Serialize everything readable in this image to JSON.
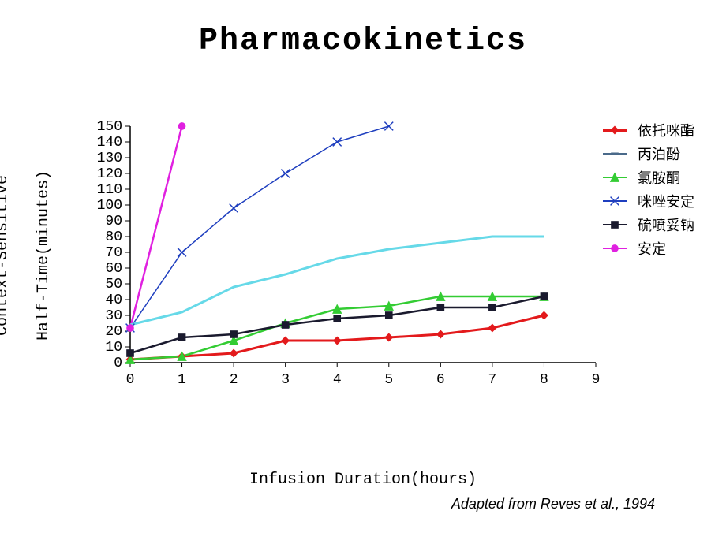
{
  "title": "Pharmacokinetics",
  "title_fontsize": 40,
  "attribution": "Adapted from Reves et al., 1994",
  "attribution_fontsize": 18,
  "chart": {
    "type": "line",
    "background_color": "#ffffff",
    "plot_border_color": "#000000",
    "axis_color": "#000000",
    "tick_fontsize": 18,
    "xlabel": "Infusion Duration(hours)",
    "ylabel_line1": "Context-Sensitive",
    "ylabel_line2": "Half-Time(minutes)",
    "label_fontsize": 20,
    "xlim": [
      0,
      9
    ],
    "ylim": [
      0,
      150
    ],
    "xticks": [
      0,
      1,
      2,
      3,
      4,
      5,
      6,
      7,
      8,
      9
    ],
    "yticks": [
      0,
      10,
      20,
      30,
      40,
      50,
      60,
      70,
      80,
      90,
      100,
      110,
      120,
      130,
      140,
      150
    ],
    "legend_fontsize": 18,
    "series": [
      {
        "name": "依托咪酯",
        "color": "#e31a1c",
        "line_width": 3,
        "marker": "diamond",
        "marker_size": 8,
        "x": [
          0,
          1,
          2,
          3,
          4,
          5,
          6,
          7,
          8
        ],
        "y": [
          2,
          4,
          6,
          14,
          14,
          16,
          18,
          22,
          30
        ]
      },
      {
        "name": "丙泊酚",
        "color": "#4a6a8a",
        "line_width": 1.5,
        "marker": "dash",
        "marker_size": 8,
        "x": [
          0,
          1,
          2,
          3,
          4,
          5,
          6,
          7,
          8
        ]
      },
      {
        "name": "氯胺酮",
        "color": "#33cc33",
        "line_width": 2.5,
        "marker": "triangle",
        "marker_size": 9,
        "x": [
          0,
          1,
          2,
          3,
          4,
          5,
          6,
          7,
          8
        ],
        "y": [
          2,
          4,
          14,
          25,
          34,
          36,
          42,
          42,
          42
        ]
      },
      {
        "name": "咪唑安定",
        "color": "#1f3fbf",
        "line_width": 1.5,
        "marker": "x",
        "marker_size": 9,
        "x": [
          0,
          1,
          2,
          3,
          4,
          5
        ],
        "y": [
          22,
          70,
          98,
          120,
          140,
          150
        ]
      },
      {
        "name": "硫喷妥钠",
        "color": "#1a1a2e",
        "line_width": 2.5,
        "marker": "square",
        "marker_size": 8,
        "x": [
          0,
          1,
          2,
          3,
          4,
          5,
          6,
          7,
          8
        ],
        "y": [
          6,
          16,
          18,
          24,
          28,
          30,
          35,
          35,
          42
        ]
      },
      {
        "name": "安定",
        "color": "#e020e0",
        "line_width": 2.5,
        "marker": "circle",
        "marker_size": 8,
        "x": [
          0,
          1
        ],
        "y": [
          22,
          150
        ]
      },
      {
        "name": "丙泊酚_line",
        "legend_hidden": true,
        "color": "#66d9e8",
        "line_width": 3,
        "marker": "none",
        "marker_size": 0,
        "x": [
          0,
          1,
          2,
          3,
          4,
          5,
          6,
          7,
          8
        ],
        "y": [
          24,
          32,
          48,
          56,
          66,
          72,
          76,
          80,
          80
        ]
      }
    ]
  }
}
